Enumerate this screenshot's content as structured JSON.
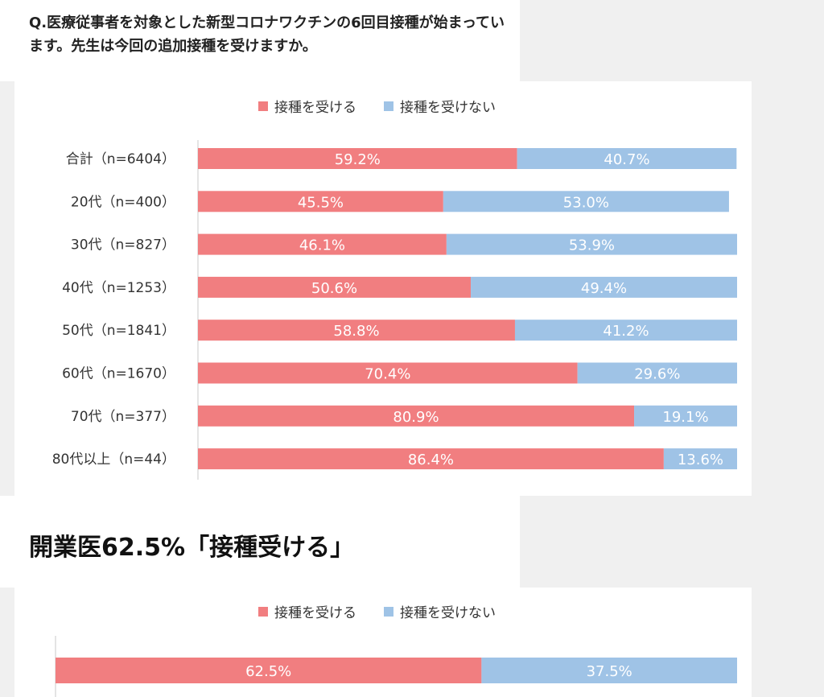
{
  "question": "Q.医療従事者を対象とした新型コロナワクチンの6回目接種が始まっています。先生は今回の追加接種を受けますか。",
  "section_heading": "開業医62.5%「接種受ける」",
  "colors": {
    "receive": "#f17e80",
    "not_receive": "#9fc3e6",
    "axis": "#c8c8c8"
  },
  "chart_data": [
    {
      "type": "bar",
      "orientation": "horizontal",
      "stacked": true,
      "legend_position": "top",
      "legend": [
        "接種を受ける",
        "接種を受けない"
      ],
      "categories": [
        "合計（n=6404）",
        "20代（n=400）",
        "30代（n=827）",
        "40代（n=1253）",
        "50代（n=1841）",
        "60代（n=1670）",
        "70代（n=377）",
        "80代以上（n=44）"
      ],
      "series": [
        {
          "name": "接種を受ける",
          "values": [
            59.2,
            45.5,
            46.1,
            50.6,
            58.8,
            70.4,
            80.9,
            86.4
          ],
          "labels": [
            "59.2%",
            "45.5%",
            "46.1%",
            "50.6%",
            "58.8%",
            "70.4%",
            "80.9%",
            "86.4%"
          ]
        },
        {
          "name": "接種を受けない",
          "values": [
            40.7,
            53.0,
            53.9,
            49.4,
            41.2,
            29.6,
            19.1,
            13.6
          ],
          "labels": [
            "40.7%",
            "53.0%",
            "53.9%",
            "49.4%",
            "41.2%",
            "29.6%",
            "19.1%",
            "13.6%"
          ]
        }
      ],
      "xlim": [
        0,
        100
      ]
    },
    {
      "type": "bar",
      "orientation": "horizontal",
      "stacked": true,
      "legend_position": "top",
      "legend": [
        "接種を受ける",
        "接種を受けない"
      ],
      "categories": [
        ""
      ],
      "series": [
        {
          "name": "接種を受ける",
          "values": [
            62.5
          ],
          "labels": [
            "62.5%"
          ]
        },
        {
          "name": "接種を受けない",
          "values": [
            37.5
          ],
          "labels": [
            "37.5%"
          ]
        }
      ],
      "xlim": [
        0,
        100
      ]
    }
  ]
}
